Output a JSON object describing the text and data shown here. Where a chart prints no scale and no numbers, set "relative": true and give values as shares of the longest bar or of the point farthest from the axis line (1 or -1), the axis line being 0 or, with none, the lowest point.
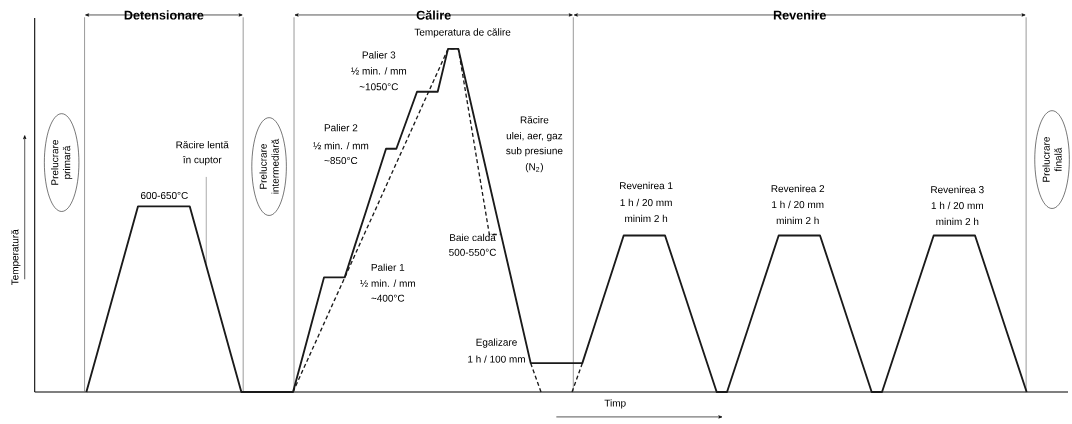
{
  "chart_data": {
    "type": "line",
    "relative": true,
    "xlabel": "Timp",
    "ylabel": "Temperatură",
    "categories": [
      null,
      null,
      null,
      null,
      null,
      null,
      null,
      null,
      null,
      null,
      null,
      null,
      null,
      null,
      null,
      null,
      null,
      null,
      null,
      null,
      null,
      null,
      null,
      null,
      null,
      null,
      null,
      null,
      null,
      null,
      null,
      null,
      null,
      null,
      null,
      null,
      null,
      null,
      null,
      null,
      null,
      null,
      null,
      null,
      null,
      null,
      null,
      null,
      null,
      null,
      null,
      null,
      null,
      null,
      null,
      null,
      null,
      null,
      null,
      null,
      null,
      null,
      null,
      null,
      null,
      null,
      null,
      null,
      null,
      null,
      null,
      null,
      null,
      null,
      null,
      null,
      null,
      null,
      null,
      null,
      null,
      null,
      null,
      null,
      null,
      null,
      null,
      null,
      null,
      null,
      null,
      null,
      null,
      null,
      null,
      null,
      null,
      null,
      null,
      null,
      null
    ],
    "series": [
      {
        "color": "#1a1a1a",
        "line_style": "solid",
        "values": [
          null,
          null,
          null,
          null,
          null,
          0,
          0.108,
          0.216,
          0.325,
          0.433,
          0.541,
          0.541,
          0.541,
          0.541,
          0.541,
          0.541,
          0.433,
          0.325,
          0.216,
          0.108,
          0,
          0,
          0,
          0,
          0,
          0,
          0.111,
          0.223,
          0.334,
          0.334,
          0.334,
          0.428,
          0.521,
          0.615,
          0.709,
          0.709,
          0.792,
          0.875,
          0.875,
          0.875,
          1,
          1,
          0.869,
          0.738,
          0.607,
          0.476,
          0.346,
          0.215,
          0.084,
          0.084,
          0.084,
          0.084,
          0.084,
          0.084,
          0.177,
          0.27,
          0.363,
          0.456,
          0.456,
          0.456,
          0.456,
          0.456,
          0.365,
          0.274,
          0.182,
          0.091,
          0,
          0,
          0.091,
          0.182,
          0.274,
          0.365,
          0.456,
          0.456,
          0.456,
          0.456,
          0.456,
          0.365,
          0.274,
          0.182,
          0.091,
          0,
          0,
          0.091,
          0.182,
          0.274,
          0.365,
          0.456,
          0.456,
          0.456,
          0.456,
          0.456,
          0.365,
          0.274,
          0.182,
          0.091,
          0,
          null,
          null,
          null,
          null
        ]
      },
      {
        "color": "#1a1a1a",
        "line_style": "dashed",
        "values": [
          null,
          null,
          null,
          null,
          null,
          null,
          null,
          null,
          null,
          null,
          null,
          null,
          null,
          null,
          null,
          null,
          null,
          null,
          null,
          null,
          null,
          null,
          null,
          null,
          null,
          0,
          0.067,
          0.133,
          0.2,
          0.267,
          0.333,
          0.4,
          0.467,
          0.533,
          0.6,
          0.667,
          0.733,
          0.8,
          0.867,
          0.933,
          1,
          1,
          0.82,
          0.639,
          0.459,
          0.459,
          null,
          null,
          0.084,
          0,
          null,
          null,
          0,
          0.084,
          null,
          null,
          null,
          null,
          null,
          null,
          null,
          null,
          null,
          null,
          null,
          null,
          null,
          null,
          null,
          null,
          null,
          null,
          null,
          null,
          null,
          null,
          null,
          null,
          null,
          null,
          null,
          null,
          null,
          null,
          null,
          null,
          null,
          null,
          null,
          null,
          null,
          null,
          null,
          null,
          null,
          null,
          null,
          null,
          null,
          null,
          null
        ]
      }
    ],
    "annotations": [
      "Detensionare",
      "Călire",
      "Revenire",
      "Prelucrare primară",
      "Prelucrare intermediară",
      "Prelucrare finală",
      "600-650°C",
      "Răcire lentă",
      "în cuptor",
      "Temperatura de călire",
      "Palier 3",
      "½ min. / mm",
      "~1050°C",
      "Palier 2",
      "½ min. / mm",
      "~850°C",
      "Palier 1",
      "½ min. / mm",
      "~400°C",
      "Baie caldă",
      "500-550°C",
      "Răcire",
      "ulei, aer, gaz",
      "sub presiune",
      "(N$_{2}$)",
      "Egalizare",
      "1 h / 100 mm",
      "Revenirea 1",
      "1 h / 20 mm",
      "minim 2 h",
      "Revenirea 2",
      "1 h / 20 mm",
      "minim 2 h",
      "Revenirea 3",
      "1 h / 20 mm",
      "minim 2 h"
    ]
  }
}
